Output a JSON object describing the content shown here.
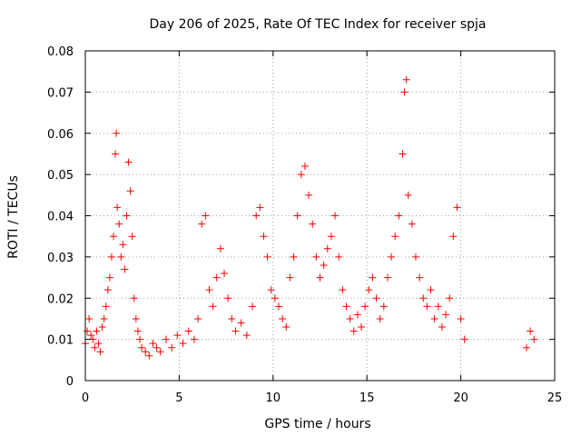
{
  "chart_data": {
    "type": "scatter",
    "title": "Day 206 of 2025, Rate Of TEC Index for receiver spja",
    "xlabel": "GPS time / hours",
    "ylabel": "ROTI / TECUs",
    "xlim": [
      0,
      25
    ],
    "ylim": [
      0,
      0.08
    ],
    "xticks": [
      "0",
      "5",
      "10",
      "15",
      "20",
      "25"
    ],
    "yticks": [
      "0",
      "0.01",
      "0.02",
      "0.03",
      "0.04",
      "0.05",
      "0.06",
      "0.07",
      "0.08"
    ],
    "grid": true,
    "marker": "plus",
    "colors": {
      "series": "#ff0000",
      "grid": "#a0a0a0",
      "axis": "#000000"
    },
    "series": [
      {
        "x": [
          0.0,
          0.1,
          0.2,
          0.3,
          0.4,
          0.5,
          0.6,
          0.7,
          0.8,
          0.9,
          1.0,
          1.1,
          1.2,
          1.3,
          1.4,
          1.5,
          1.6,
          1.65,
          1.7,
          1.8,
          1.9,
          2.0,
          2.1,
          2.2,
          2.3,
          2.4,
          2.5,
          2.6,
          2.7,
          2.8,
          2.9,
          3.0,
          3.2,
          3.4,
          3.6,
          3.8,
          4.0,
          4.3,
          4.6,
          4.9,
          5.2,
          5.5,
          5.8,
          6.0,
          6.2,
          6.4,
          6.6,
          6.8,
          7.0,
          7.2,
          7.4,
          7.6,
          7.8,
          8.0,
          8.3,
          8.6,
          8.9,
          9.1,
          9.3,
          9.5,
          9.7,
          9.9,
          10.1,
          10.3,
          10.5,
          10.7,
          10.9,
          11.1,
          11.3,
          11.5,
          11.7,
          11.9,
          12.1,
          12.3,
          12.5,
          12.7,
          12.9,
          13.1,
          13.3,
          13.5,
          13.7,
          13.9,
          14.1,
          14.3,
          14.5,
          14.7,
          14.9,
          15.1,
          15.3,
          15.5,
          15.7,
          15.9,
          16.1,
          16.3,
          16.5,
          16.7,
          16.9,
          17.0,
          17.1,
          17.2,
          17.4,
          17.6,
          17.8,
          18.0,
          18.2,
          18.4,
          18.6,
          18.8,
          19.0,
          19.2,
          19.4,
          19.6,
          19.8,
          20.0,
          20.2,
          23.5,
          23.7,
          23.9
        ],
        "y": [
          0.009,
          0.012,
          0.015,
          0.011,
          0.01,
          0.008,
          0.012,
          0.009,
          0.007,
          0.013,
          0.015,
          0.018,
          0.022,
          0.025,
          0.03,
          0.035,
          0.055,
          0.06,
          0.042,
          0.038,
          0.03,
          0.033,
          0.027,
          0.04,
          0.053,
          0.046,
          0.035,
          0.02,
          0.015,
          0.012,
          0.01,
          0.008,
          0.007,
          0.006,
          0.009,
          0.008,
          0.007,
          0.01,
          0.008,
          0.011,
          0.009,
          0.012,
          0.01,
          0.015,
          0.038,
          0.04,
          0.022,
          0.018,
          0.025,
          0.032,
          0.026,
          0.02,
          0.015,
          0.012,
          0.014,
          0.011,
          0.018,
          0.04,
          0.042,
          0.035,
          0.03,
          0.022,
          0.02,
          0.018,
          0.015,
          0.013,
          0.025,
          0.03,
          0.04,
          0.05,
          0.052,
          0.045,
          0.038,
          0.03,
          0.025,
          0.028,
          0.032,
          0.035,
          0.04,
          0.03,
          0.022,
          0.018,
          0.015,
          0.012,
          0.016,
          0.013,
          0.018,
          0.022,
          0.025,
          0.02,
          0.015,
          0.018,
          0.025,
          0.03,
          0.035,
          0.04,
          0.055,
          0.07,
          0.073,
          0.045,
          0.038,
          0.03,
          0.025,
          0.02,
          0.018,
          0.022,
          0.015,
          0.018,
          0.013,
          0.016,
          0.02,
          0.035,
          0.042,
          0.015,
          0.01,
          0.008,
          0.012,
          0.01
        ]
      }
    ]
  }
}
